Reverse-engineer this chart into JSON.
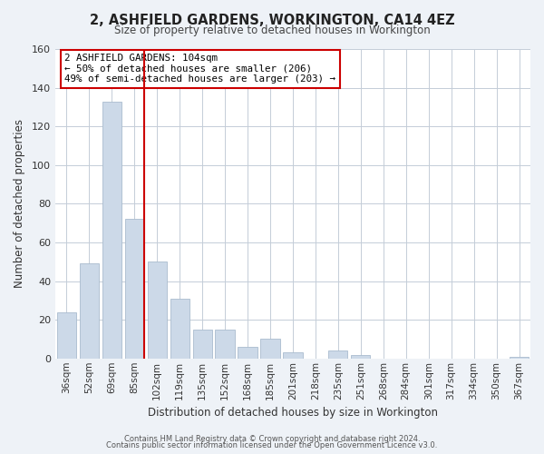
{
  "title": "2, ASHFIELD GARDENS, WORKINGTON, CA14 4EZ",
  "subtitle": "Size of property relative to detached houses in Workington",
  "xlabel": "Distribution of detached houses by size in Workington",
  "ylabel": "Number of detached properties",
  "bar_color": "#ccd9e8",
  "bar_edge_color": "#aabcce",
  "categories": [
    "36sqm",
    "52sqm",
    "69sqm",
    "85sqm",
    "102sqm",
    "119sqm",
    "135sqm",
    "152sqm",
    "168sqm",
    "185sqm",
    "201sqm",
    "218sqm",
    "235sqm",
    "251sqm",
    "268sqm",
    "284sqm",
    "301sqm",
    "317sqm",
    "334sqm",
    "350sqm",
    "367sqm"
  ],
  "values": [
    24,
    49,
    133,
    72,
    50,
    31,
    15,
    15,
    6,
    10,
    3,
    0,
    4,
    2,
    0,
    0,
    0,
    0,
    0,
    0,
    1
  ],
  "marker_color": "#cc0000",
  "annotation_title": "2 ASHFIELD GARDENS: 104sqm",
  "annotation_line1": "← 50% of detached houses are smaller (206)",
  "annotation_line2": "49% of semi-detached houses are larger (203) →",
  "ylim": [
    0,
    160
  ],
  "yticks": [
    0,
    20,
    40,
    60,
    80,
    100,
    120,
    140,
    160
  ],
  "footer1": "Contains HM Land Registry data © Crown copyright and database right 2024.",
  "footer2": "Contains public sector information licensed under the Open Government Licence v3.0.",
  "bg_color": "#eef2f7",
  "plot_bg_color": "#ffffff",
  "grid_color": "#c4cdd8"
}
